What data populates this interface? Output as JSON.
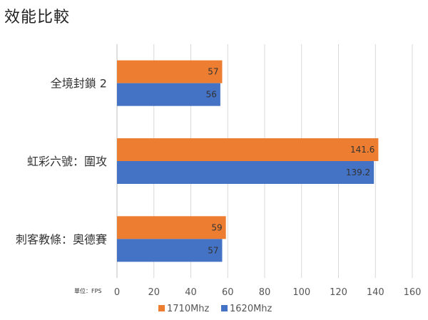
{
  "chart_data": {
    "type": "bar",
    "orientation": "horizontal",
    "title": "效能比較",
    "unit_label": "單位：FPS",
    "categories": [
      "全境封鎖 2",
      "虹彩六號：圍攻",
      "刺客教條：奧德賽"
    ],
    "series": [
      {
        "name": "1710Mhz",
        "color": "#ED7D31",
        "values": [
          57,
          141.6,
          59
        ]
      },
      {
        "name": "1620Mhz",
        "color": "#4472C4",
        "values": [
          56,
          139.2,
          57
        ]
      }
    ],
    "xlim": [
      0,
      160
    ],
    "xticks": [
      0,
      20,
      40,
      60,
      80,
      100,
      120,
      140,
      160
    ],
    "grid": true,
    "legend_position": "bottom"
  }
}
